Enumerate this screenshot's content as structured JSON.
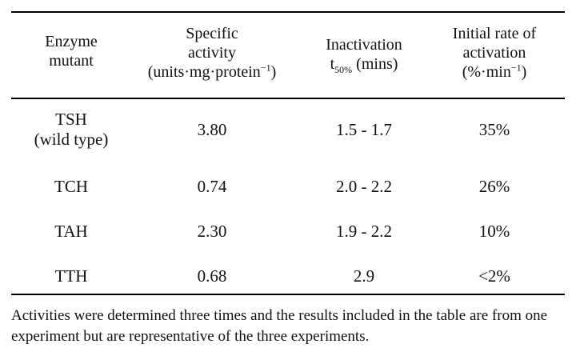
{
  "table": {
    "headers": {
      "col1": [
        "Enzyme",
        "mutant"
      ],
      "col2": [
        "Specific",
        "activity",
        "(units·mg·protein",
        "−1",
        ")"
      ],
      "col3": [
        "Inactivation",
        "t",
        "50%",
        " (mins)"
      ],
      "col4": [
        "Initial rate of",
        "activation",
        "(%·min",
        "−1",
        ")"
      ]
    },
    "rows": [
      {
        "mutant": [
          "TSH",
          "(wild type)"
        ],
        "specific_activity": "3.80",
        "inactivation": "1.5 - 1.7",
        "initial_rate": "35%"
      },
      {
        "mutant": [
          "TCH"
        ],
        "specific_activity": "0.74",
        "inactivation": "2.0 - 2.2",
        "initial_rate": "26%"
      },
      {
        "mutant": [
          "TAH"
        ],
        "specific_activity": "2.30",
        "inactivation": "1.9 - 2.2",
        "initial_rate": "10%"
      },
      {
        "mutant": [
          "TTH"
        ],
        "specific_activity": "0.68",
        "inactivation": "2.9",
        "initial_rate": "<2%"
      }
    ],
    "footnote": "Activities were determined three times and the results included in the table are from one experiment but are representative of the three experiments."
  }
}
